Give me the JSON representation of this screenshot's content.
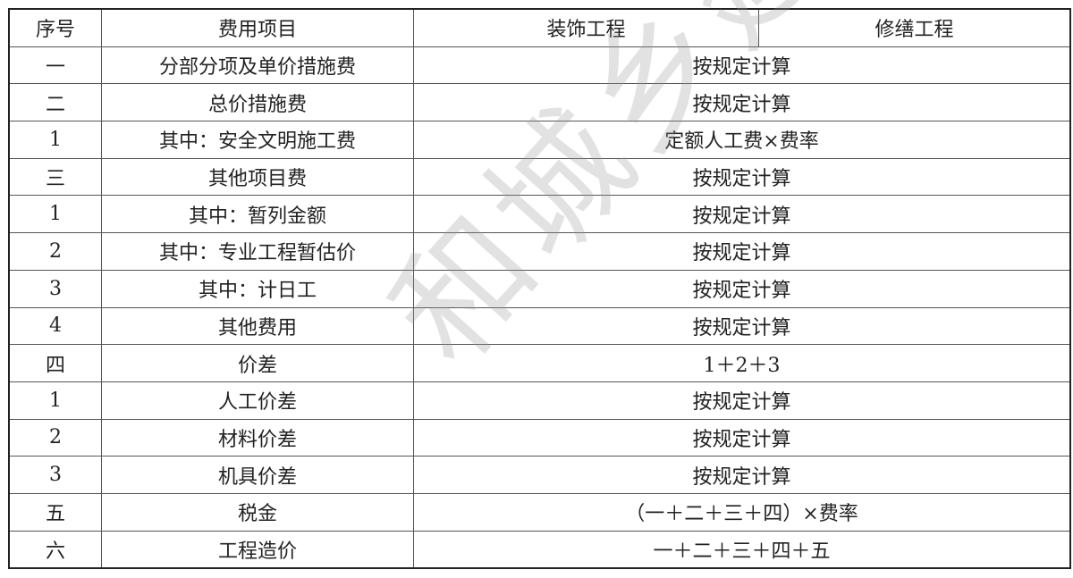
{
  "header": {
    "no": "序号",
    "item": "费用项目",
    "decoration": "装饰工程",
    "repair": "修缮工程"
  },
  "rows": [
    {
      "no": "一",
      "item": "分部分项及单价措施费",
      "calc": "按规定计算"
    },
    {
      "no": "二",
      "item": "总价措施费",
      "calc": "按规定计算"
    },
    {
      "no": "1",
      "item": "其中：安全文明施工费",
      "calc": "定额人工费×费率"
    },
    {
      "no": "三",
      "item": "其他项目费",
      "calc": "按规定计算"
    },
    {
      "no": "1",
      "item": "其中：暂列金额",
      "calc": "按规定计算"
    },
    {
      "no": "2",
      "item": "其中：专业工程暂估价",
      "calc": "按规定计算"
    },
    {
      "no": "3",
      "item": "其中：计日工",
      "calc": "按规定计算"
    },
    {
      "no": "4",
      "item": "其他费用",
      "calc": "按规定计算"
    },
    {
      "no": "四",
      "item": "价差",
      "calc": "1＋2＋3"
    },
    {
      "no": "1",
      "item": "人工价差",
      "calc": "按规定计算"
    },
    {
      "no": "2",
      "item": "材料价差",
      "calc": "按规定计算"
    },
    {
      "no": "3",
      "item": "机具价差",
      "calc": "按规定计算"
    },
    {
      "no": "五",
      "item": "税金",
      "calc": "（一＋二＋三＋四）×费率"
    },
    {
      "no": "六",
      "item": "工程造价",
      "calc": "一＋二＋三＋四＋五"
    }
  ],
  "watermark": "和城乡建设"
}
